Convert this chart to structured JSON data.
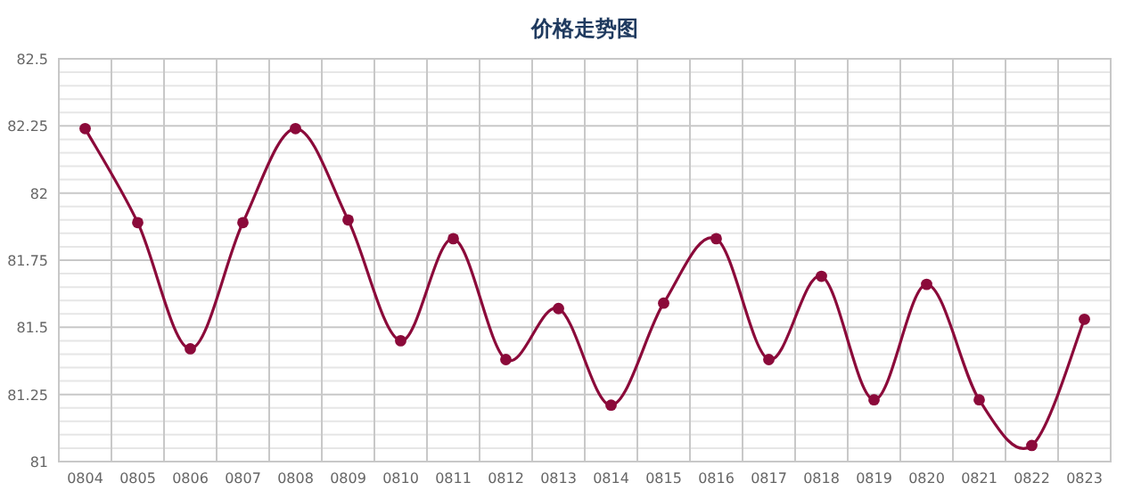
{
  "chart_data": {
    "type": "line",
    "title": "价格走势图",
    "categories": [
      "0804",
      "0805",
      "0806",
      "0807",
      "0808",
      "0809",
      "0810",
      "0811",
      "0812",
      "0813",
      "0814",
      "0815",
      "0816",
      "0817",
      "0818",
      "0819",
      "0820",
      "0821",
      "0822",
      "0823"
    ],
    "series": [
      {
        "color": "#8b0a3a",
        "values": [
          82.24,
          81.89,
          81.42,
          81.89,
          82.24,
          81.9,
          81.45,
          81.83,
          81.38,
          81.57,
          81.21,
          81.59,
          81.83,
          81.38,
          81.69,
          81.23,
          81.66,
          81.23,
          81.06,
          81.53
        ]
      }
    ],
    "ylim": [
      81,
      82.5
    ],
    "yticks": [
      81,
      81.25,
      81.5,
      81.75,
      82,
      82.25,
      82.5
    ],
    "grid": true,
    "marker": "circle",
    "line_style": "solid"
  }
}
